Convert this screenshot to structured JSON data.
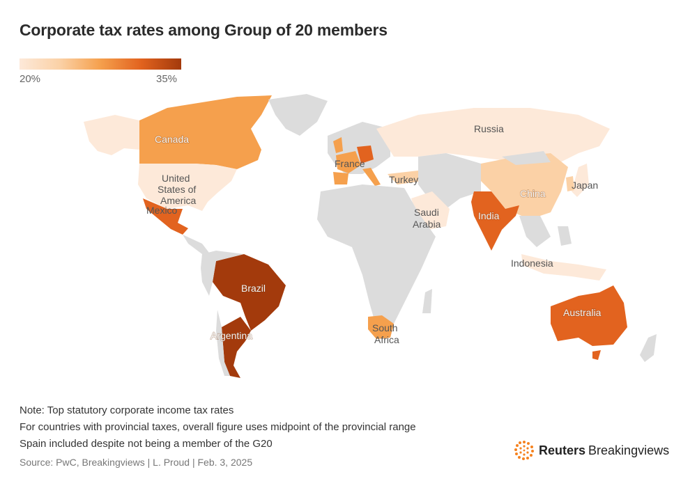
{
  "title": "Corporate tax rates among Group of 20 members",
  "legend": {
    "min_label": "20%",
    "max_label": "35%",
    "min_value": 20,
    "max_value": 35,
    "colors": [
      "#fde9d9",
      "#fbd1a6",
      "#f5a04d",
      "#e2631f",
      "#a33a0c"
    ]
  },
  "countries": {
    "canada": "Canada",
    "usa": "United States of America",
    "mexico": "Mexico",
    "brazil": "Brazil",
    "argentina": "Argentina",
    "france": "France",
    "turkey": "Turkey",
    "saudi": "Saudi Arabia",
    "russia": "Russia",
    "china": "China",
    "japan": "Japan",
    "india": "India",
    "indonesia": "Indonesia",
    "australia": "Australia",
    "south_africa": "South Africa"
  },
  "notes": [
    "Note: Top statutory corporate income tax rates",
    "For countries with provincial taxes, overall figure uses midpoint of the provincial range",
    "Spain included despite not being a member of the G20"
  ],
  "source": "Source: PwC, Breakingviews | L. Proud | Feb. 3, 2025",
  "brand": {
    "name": "Reuters",
    "sub": "Breakingviews"
  }
}
